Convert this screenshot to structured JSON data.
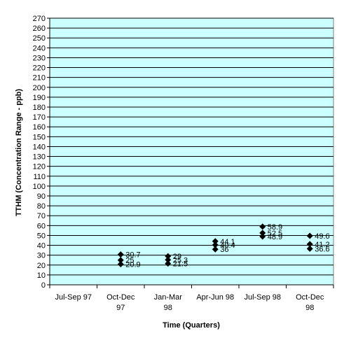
{
  "chart_data": {
    "type": "scatter",
    "title": "",
    "xlabel": "Time (Quarters)",
    "ylabel": "TTHM (Concentration Range - ppb)",
    "ylim": [
      0,
      270
    ],
    "ytick_step": 10,
    "grid": true,
    "legend": "none",
    "categories": [
      "Jul-Sep 97",
      "Oct-Dec 97",
      "Jan-Mar 98",
      "Apr-Jun 98",
      "Jul-Sep 98",
      "Oct-Dec 98"
    ],
    "category_lines": [
      [
        "Jul-Sep 97"
      ],
      [
        "Oct-Dec",
        "97"
      ],
      [
        "Jan-Mar",
        "98"
      ],
      [
        "Apr-Jun 98"
      ],
      [
        "Jul-Sep 98"
      ],
      [
        "Oct-Dec",
        "98"
      ]
    ],
    "points": [
      {
        "category": "Oct-Dec 97",
        "values": [
          30.7,
          25,
          20.9
        ],
        "labels": [
          "30.7",
          "25",
          "20.9"
        ]
      },
      {
        "category": "Jan-Mar 98",
        "values": [
          29,
          25.3,
          21.5
        ],
        "labels": [
          "29",
          "25.3",
          "21.5"
        ]
      },
      {
        "category": "Apr-Jun 98",
        "values": [
          44.1,
          40.4,
          36
        ],
        "labels": [
          "44.1",
          "40.4",
          "36"
        ]
      },
      {
        "category": "Jul-Sep 98",
        "values": [
          58.9,
          52.5,
          48.9
        ],
        "labels": [
          "58.9",
          "52.5",
          "48.9"
        ]
      },
      {
        "category": "Oct-Dec 98",
        "values": [
          49.6,
          41.2,
          36.6
        ],
        "labels": [
          "49.6",
          "41.2",
          "36.6"
        ]
      }
    ],
    "colors": {
      "plot_bg": "#ccffff",
      "grid": "#000000",
      "marker": "#000000"
    }
  }
}
